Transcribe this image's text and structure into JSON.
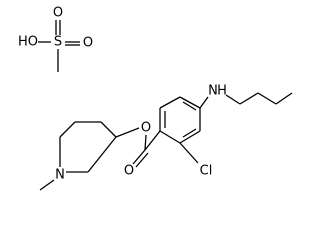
{
  "atoms": {
    "acid_oh": "HO",
    "acid_s": "S",
    "acid_o_top": "O",
    "acid_o_right": "O",
    "ester_o": "O",
    "carbonyl_o": "O",
    "chlorine": "Cl",
    "amine_n": "N",
    "amine_h": "H",
    "piperidine_n": "N"
  }
}
